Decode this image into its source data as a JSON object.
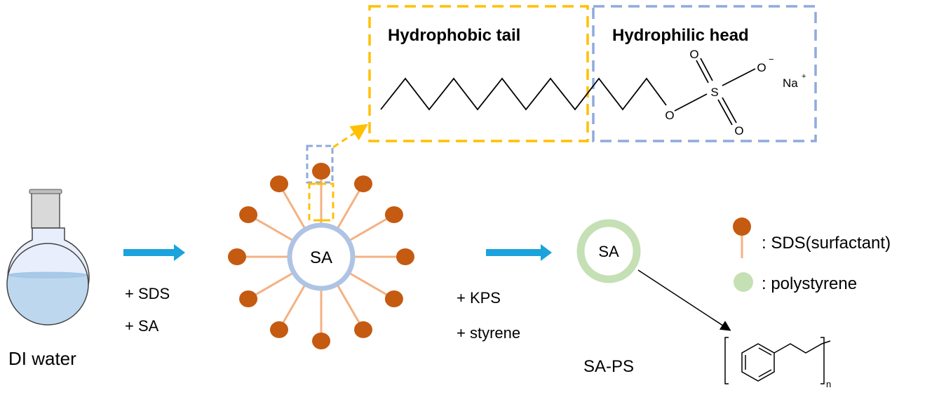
{
  "labels": {
    "di_water": "DI water",
    "step1_a": "+ SDS",
    "step1_b": "+ SA",
    "step2_a": "+ KPS",
    "step2_b": "+ styrene",
    "core": "SA",
    "product_core": "SA",
    "product": "SA-PS"
  },
  "structure": {
    "tail_title": "Hydrophobic tail",
    "head_title": "Hydrophilic head",
    "atom_o1": "O",
    "atom_o2": "O",
    "atom_o3": "O",
    "atom_o4": "O",
    "atom_s": "S",
    "charge_minus": "−",
    "atom_na": "Na",
    "charge_plus": "+",
    "repeat_n": "n"
  },
  "legend": {
    "sds": ": SDS(surfactant)",
    "ps": ": polystyrene"
  },
  "colors": {
    "head": "#c55a11",
    "stalk": "#f4b183",
    "core_ring": "#afc4e4",
    "ps_ring": "#c5e0b4",
    "arrow": "#1aa3dd",
    "tail_box": "#ffc000",
    "head_box": "#8faadc",
    "water": "#bdd7ee"
  }
}
